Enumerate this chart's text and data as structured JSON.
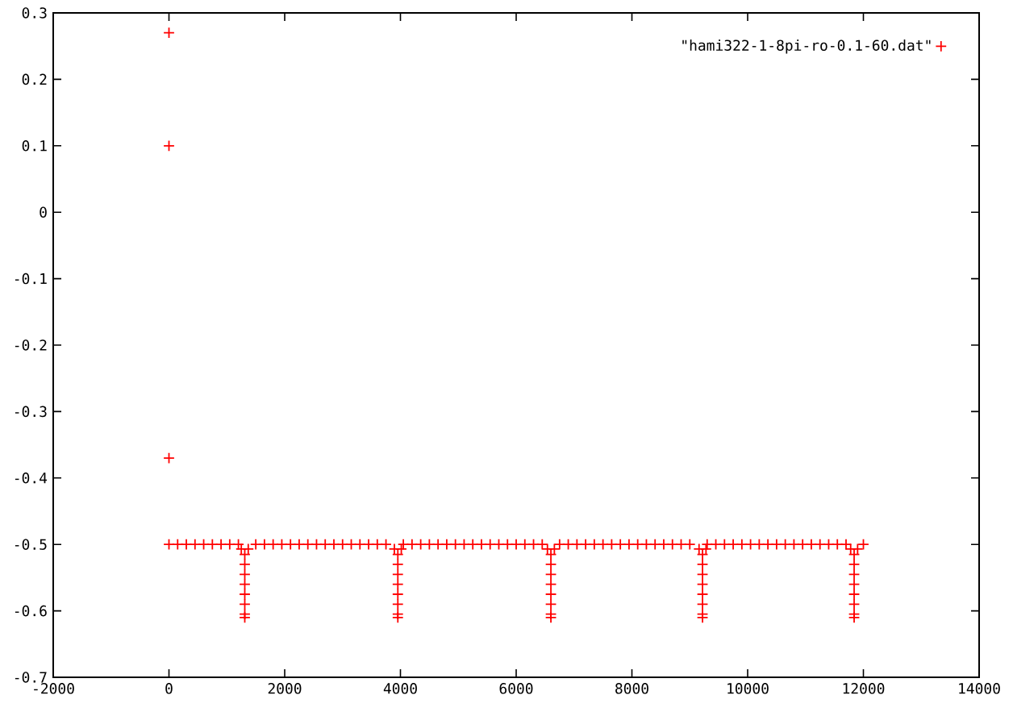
{
  "chart_data": {
    "type": "scatter",
    "marker": "cross",
    "legend": "top right",
    "xlim": [
      -2000,
      14000
    ],
    "ylim": [
      -0.7,
      0.3
    ],
    "xticks": [
      -2000,
      0,
      2000,
      4000,
      6000,
      8000,
      10000,
      12000,
      14000
    ],
    "yticks": [
      -0.7,
      -0.6,
      -0.5,
      -0.4,
      -0.3,
      -0.2,
      -0.1,
      0,
      0.1,
      0.2,
      0.3
    ],
    "series": [
      {
        "name": "\"hami322-1-8pi-ro-0.1-60.dat\"",
        "color": "#ff0000",
        "x": [
          0,
          0,
          0,
          0,
          150,
          300,
          450,
          600,
          750,
          900,
          1050,
          1200,
          1500,
          1650,
          1800,
          1950,
          2100,
          2250,
          2400,
          2550,
          2700,
          2850,
          3000,
          3150,
          3300,
          3450,
          3600,
          3750,
          4050,
          4200,
          4350,
          4500,
          4650,
          4800,
          4950,
          5100,
          5250,
          5400,
          5550,
          5700,
          5850,
          6000,
          6150,
          6300,
          6450,
          6750,
          6900,
          7050,
          7200,
          7350,
          7500,
          7650,
          7800,
          7950,
          8100,
          8250,
          8400,
          8550,
          8700,
          8850,
          9000,
          9300,
          9450,
          9600,
          9750,
          9900,
          10050,
          10200,
          10350,
          10500,
          10650,
          10800,
          10950,
          11100,
          11250,
          11400,
          11550,
          11700,
          12000,
          1250,
          1370,
          1310,
          1310,
          1310,
          1310,
          1310,
          1310,
          1310,
          1310,
          3895,
          4015,
          3955,
          3955,
          3955,
          3955,
          3955,
          3955,
          3955,
          3955,
          6540,
          6660,
          6600,
          6600,
          6600,
          6600,
          6600,
          6600,
          6600,
          6600,
          9160,
          9280,
          9220,
          9220,
          9220,
          9220,
          9220,
          9220,
          9220,
          9220,
          11780,
          11900,
          11840,
          11840,
          11840,
          11840,
          11840,
          11840,
          11840,
          11840
        ],
        "values": [
          0.27,
          0.1,
          -0.37,
          -0.5,
          -0.5,
          -0.5,
          -0.5,
          -0.5,
          -0.5,
          -0.5,
          -0.5,
          -0.5,
          -0.5,
          -0.5,
          -0.5,
          -0.5,
          -0.5,
          -0.5,
          -0.5,
          -0.5,
          -0.5,
          -0.5,
          -0.5,
          -0.5,
          -0.5,
          -0.5,
          -0.5,
          -0.5,
          -0.5,
          -0.5,
          -0.5,
          -0.5,
          -0.5,
          -0.5,
          -0.5,
          -0.5,
          -0.5,
          -0.5,
          -0.5,
          -0.5,
          -0.5,
          -0.5,
          -0.5,
          -0.5,
          -0.5,
          -0.5,
          -0.5,
          -0.5,
          -0.5,
          -0.5,
          -0.5,
          -0.5,
          -0.5,
          -0.5,
          -0.5,
          -0.5,
          -0.5,
          -0.5,
          -0.5,
          -0.5,
          -0.5,
          -0.5,
          -0.5,
          -0.5,
          -0.5,
          -0.5,
          -0.5,
          -0.5,
          -0.5,
          -0.5,
          -0.5,
          -0.5,
          -0.5,
          -0.5,
          -0.5,
          -0.5,
          -0.5,
          -0.5,
          -0.5,
          -0.507,
          -0.507,
          -0.515,
          -0.53,
          -0.545,
          -0.56,
          -0.575,
          -0.59,
          -0.605,
          -0.61,
          -0.507,
          -0.507,
          -0.515,
          -0.53,
          -0.545,
          -0.56,
          -0.575,
          -0.59,
          -0.605,
          -0.61,
          -0.507,
          -0.507,
          -0.515,
          -0.53,
          -0.545,
          -0.56,
          -0.575,
          -0.59,
          -0.605,
          -0.61,
          -0.507,
          -0.507,
          -0.515,
          -0.53,
          -0.545,
          -0.56,
          -0.575,
          -0.59,
          -0.605,
          -0.61,
          -0.507,
          -0.507,
          -0.515,
          -0.53,
          -0.545,
          -0.56,
          -0.575,
          -0.59,
          -0.605,
          -0.61
        ]
      }
    ]
  }
}
